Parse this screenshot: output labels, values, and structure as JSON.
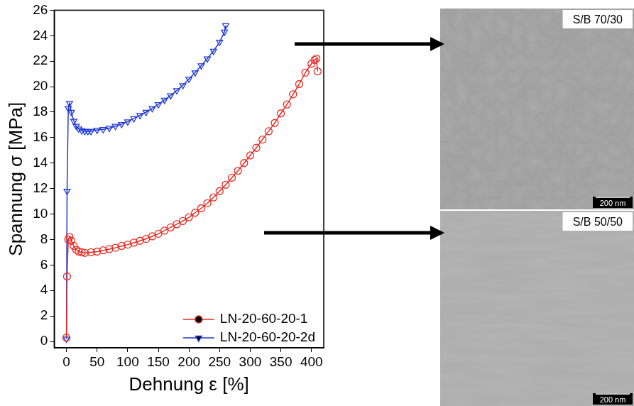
{
  "chart_data": {
    "type": "scatter",
    "x_label": "Dehnung ε [%]",
    "y_label": "Spannung σ [MPa]",
    "xlim": [
      -20,
      420
    ],
    "xticks": [
      0,
      50,
      100,
      150,
      200,
      250,
      300,
      350,
      400
    ],
    "ylim": [
      -0.5,
      26
    ],
    "yticks": [
      0,
      2,
      4,
      6,
      8,
      10,
      12,
      14,
      16,
      18,
      20,
      22,
      24,
      26
    ],
    "grid": false,
    "legend": "lower right",
    "series": [
      {
        "name": "LN-20-60-20-1",
        "color": "#e82a22",
        "marker": "circle",
        "line_style": "solid",
        "x": [
          0,
          1,
          3,
          5,
          8,
          12,
          16,
          20,
          25,
          30,
          40,
          50,
          60,
          70,
          80,
          90,
          100,
          110,
          120,
          130,
          140,
          150,
          160,
          170,
          180,
          190,
          200,
          210,
          220,
          230,
          240,
          250,
          260,
          270,
          280,
          290,
          300,
          310,
          320,
          330,
          340,
          350,
          360,
          370,
          380,
          390,
          400,
          405,
          408,
          410
        ],
        "values": [
          0.3,
          5.1,
          8.0,
          8.2,
          7.9,
          7.5,
          7.2,
          7.05,
          7.0,
          6.95,
          7.0,
          7.05,
          7.15,
          7.25,
          7.35,
          7.5,
          7.6,
          7.75,
          7.9,
          8.05,
          8.25,
          8.45,
          8.7,
          8.95,
          9.2,
          9.45,
          9.75,
          10.1,
          10.45,
          10.85,
          11.3,
          11.8,
          12.3,
          12.85,
          13.4,
          14.0,
          14.6,
          15.2,
          15.85,
          16.5,
          17.15,
          17.9,
          18.6,
          19.4,
          20.2,
          21.1,
          21.8,
          22.1,
          22.2,
          21.2
        ]
      },
      {
        "name": "LN-20-60-20-2d",
        "color": "#1f3ad6",
        "marker": "triangle-down",
        "line_style": "solid",
        "x": [
          0,
          1,
          3,
          5,
          8,
          12,
          16,
          20,
          25,
          30,
          35,
          40,
          50,
          60,
          70,
          80,
          90,
          100,
          110,
          120,
          130,
          140,
          150,
          160,
          170,
          180,
          190,
          200,
          210,
          220,
          230,
          240,
          250,
          258,
          260
        ],
        "values": [
          0.2,
          11.8,
          18.3,
          18.7,
          18.0,
          17.3,
          16.9,
          16.7,
          16.55,
          16.5,
          16.5,
          16.5,
          16.6,
          16.65,
          16.75,
          16.9,
          17.05,
          17.25,
          17.5,
          17.75,
          18.0,
          18.3,
          18.6,
          18.95,
          19.3,
          19.7,
          20.1,
          20.6,
          21.1,
          21.65,
          22.2,
          22.8,
          23.5,
          24.3,
          24.8
        ]
      }
    ]
  },
  "images": [
    {
      "label": "S/B 70/30",
      "scale_bar": "200 nm",
      "points_from_series": "LN-20-60-20-2d"
    },
    {
      "label": "S/B 50/50",
      "scale_bar": "200 nm",
      "points_from_series": "LN-20-60-20-1"
    }
  ]
}
